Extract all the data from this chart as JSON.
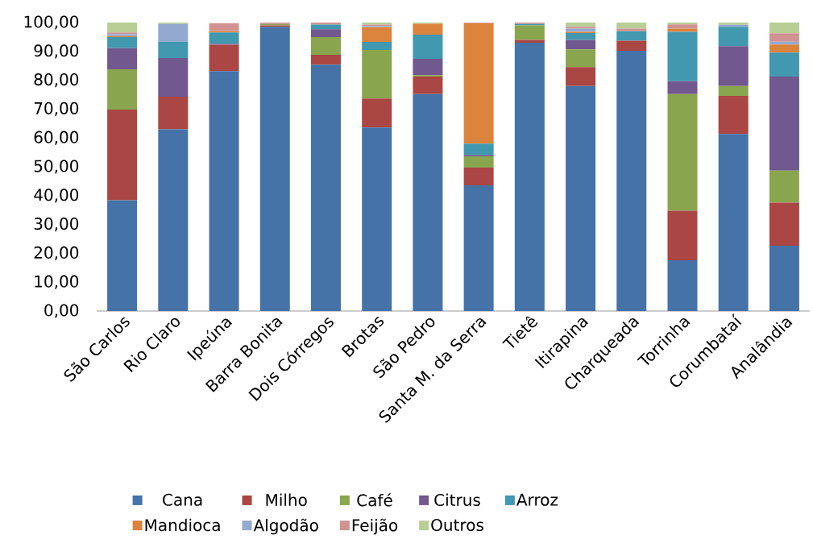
{
  "chart_data": {
    "type": "bar",
    "stacked": true,
    "legend": "bottom",
    "categories": [
      "São Carlos",
      "Rio Claro",
      "Ipeúna",
      "Barra Bonita",
      "Dois Córregos",
      "Brotas",
      "São Pedro",
      "Santa M. da Serra",
      "Tietê",
      "Itirapina",
      "Charqueada",
      "Torrinha",
      "Corumbataí",
      "Analândia"
    ],
    "ylim": [
      0,
      100
    ],
    "yticks": [
      {
        "value": 0,
        "label": "0,00"
      },
      {
        "value": 10,
        "label": "10,00"
      },
      {
        "value": 20,
        "label": "20,00"
      },
      {
        "value": 30,
        "label": "30,00"
      },
      {
        "value": 40,
        "label": "40,00"
      },
      {
        "value": 50,
        "label": "50,00"
      },
      {
        "value": 60,
        "label": "60,00"
      },
      {
        "value": 70,
        "label": "70,00"
      },
      {
        "value": 80,
        "label": "80,00"
      },
      {
        "value": 90,
        "label": "90,00"
      },
      {
        "value": 100,
        "label": "100,00"
      }
    ],
    "series": [
      {
        "name": "Cana",
        "color": "#4572a7",
        "values": [
          38.4,
          63.0,
          83.2,
          98.5,
          85.4,
          63.6,
          75.2,
          43.6,
          93.0,
          78.0,
          90.2,
          17.6,
          61.4,
          22.6
        ]
      },
      {
        "name": "Milho",
        "color": "#aa4643",
        "values": [
          31.4,
          11.3,
          9.1,
          0.5,
          3.4,
          10.1,
          6.1,
          6.1,
          1.0,
          6.6,
          3.5,
          17.2,
          13.2,
          15.0
        ]
      },
      {
        "name": "Café",
        "color": "#89a54e",
        "values": [
          14.0,
          0,
          0,
          0.5,
          6.2,
          16.8,
          0.5,
          3.9,
          5.0,
          6.1,
          0,
          40.4,
          3.4,
          11.1
        ]
      },
      {
        "name": "Citrus",
        "color": "#71588f",
        "values": [
          7.3,
          13.4,
          0.4,
          0,
          2.7,
          0,
          5.6,
          0.5,
          0,
          3.3,
          0,
          4.5,
          13.8,
          32.6
        ]
      },
      {
        "name": "Arroz",
        "color": "#4198af",
        "values": [
          3.9,
          5.7,
          3.9,
          0,
          1.6,
          2.8,
          8.4,
          3.9,
          0.5,
          2.4,
          3.3,
          17.1,
          6.7,
          8.3
        ]
      },
      {
        "name": "Mandioca",
        "color": "#db843d",
        "values": [
          0.3,
          0,
          0.5,
          0,
          0,
          5.1,
          3.8,
          41.8,
          0,
          0.4,
          0,
          1.1,
          0,
          2.8
        ]
      },
      {
        "name": "Algodão",
        "color": "#93a9cf",
        "values": [
          0.7,
          6.1,
          null,
          0,
          0,
          0.4,
          0,
          0,
          0,
          1.1,
          0,
          0,
          0.7,
          1.0
        ]
      },
      {
        "name": "Feijão",
        "color": "#d09392",
        "values": [
          0.6,
          0,
          2.7,
          0.5,
          0.7,
          0.5,
          0,
          0.2,
          0.5,
          0.6,
          0.9,
          1.5,
          0,
          2.9
        ]
      },
      {
        "name": "Outros",
        "color": "#b9cd96",
        "values": [
          3.4,
          0.5,
          0,
          0,
          0,
          0.7,
          0.4,
          0,
          0,
          1.5,
          2.1,
          0.6,
          0.8,
          3.7
        ]
      }
    ]
  }
}
